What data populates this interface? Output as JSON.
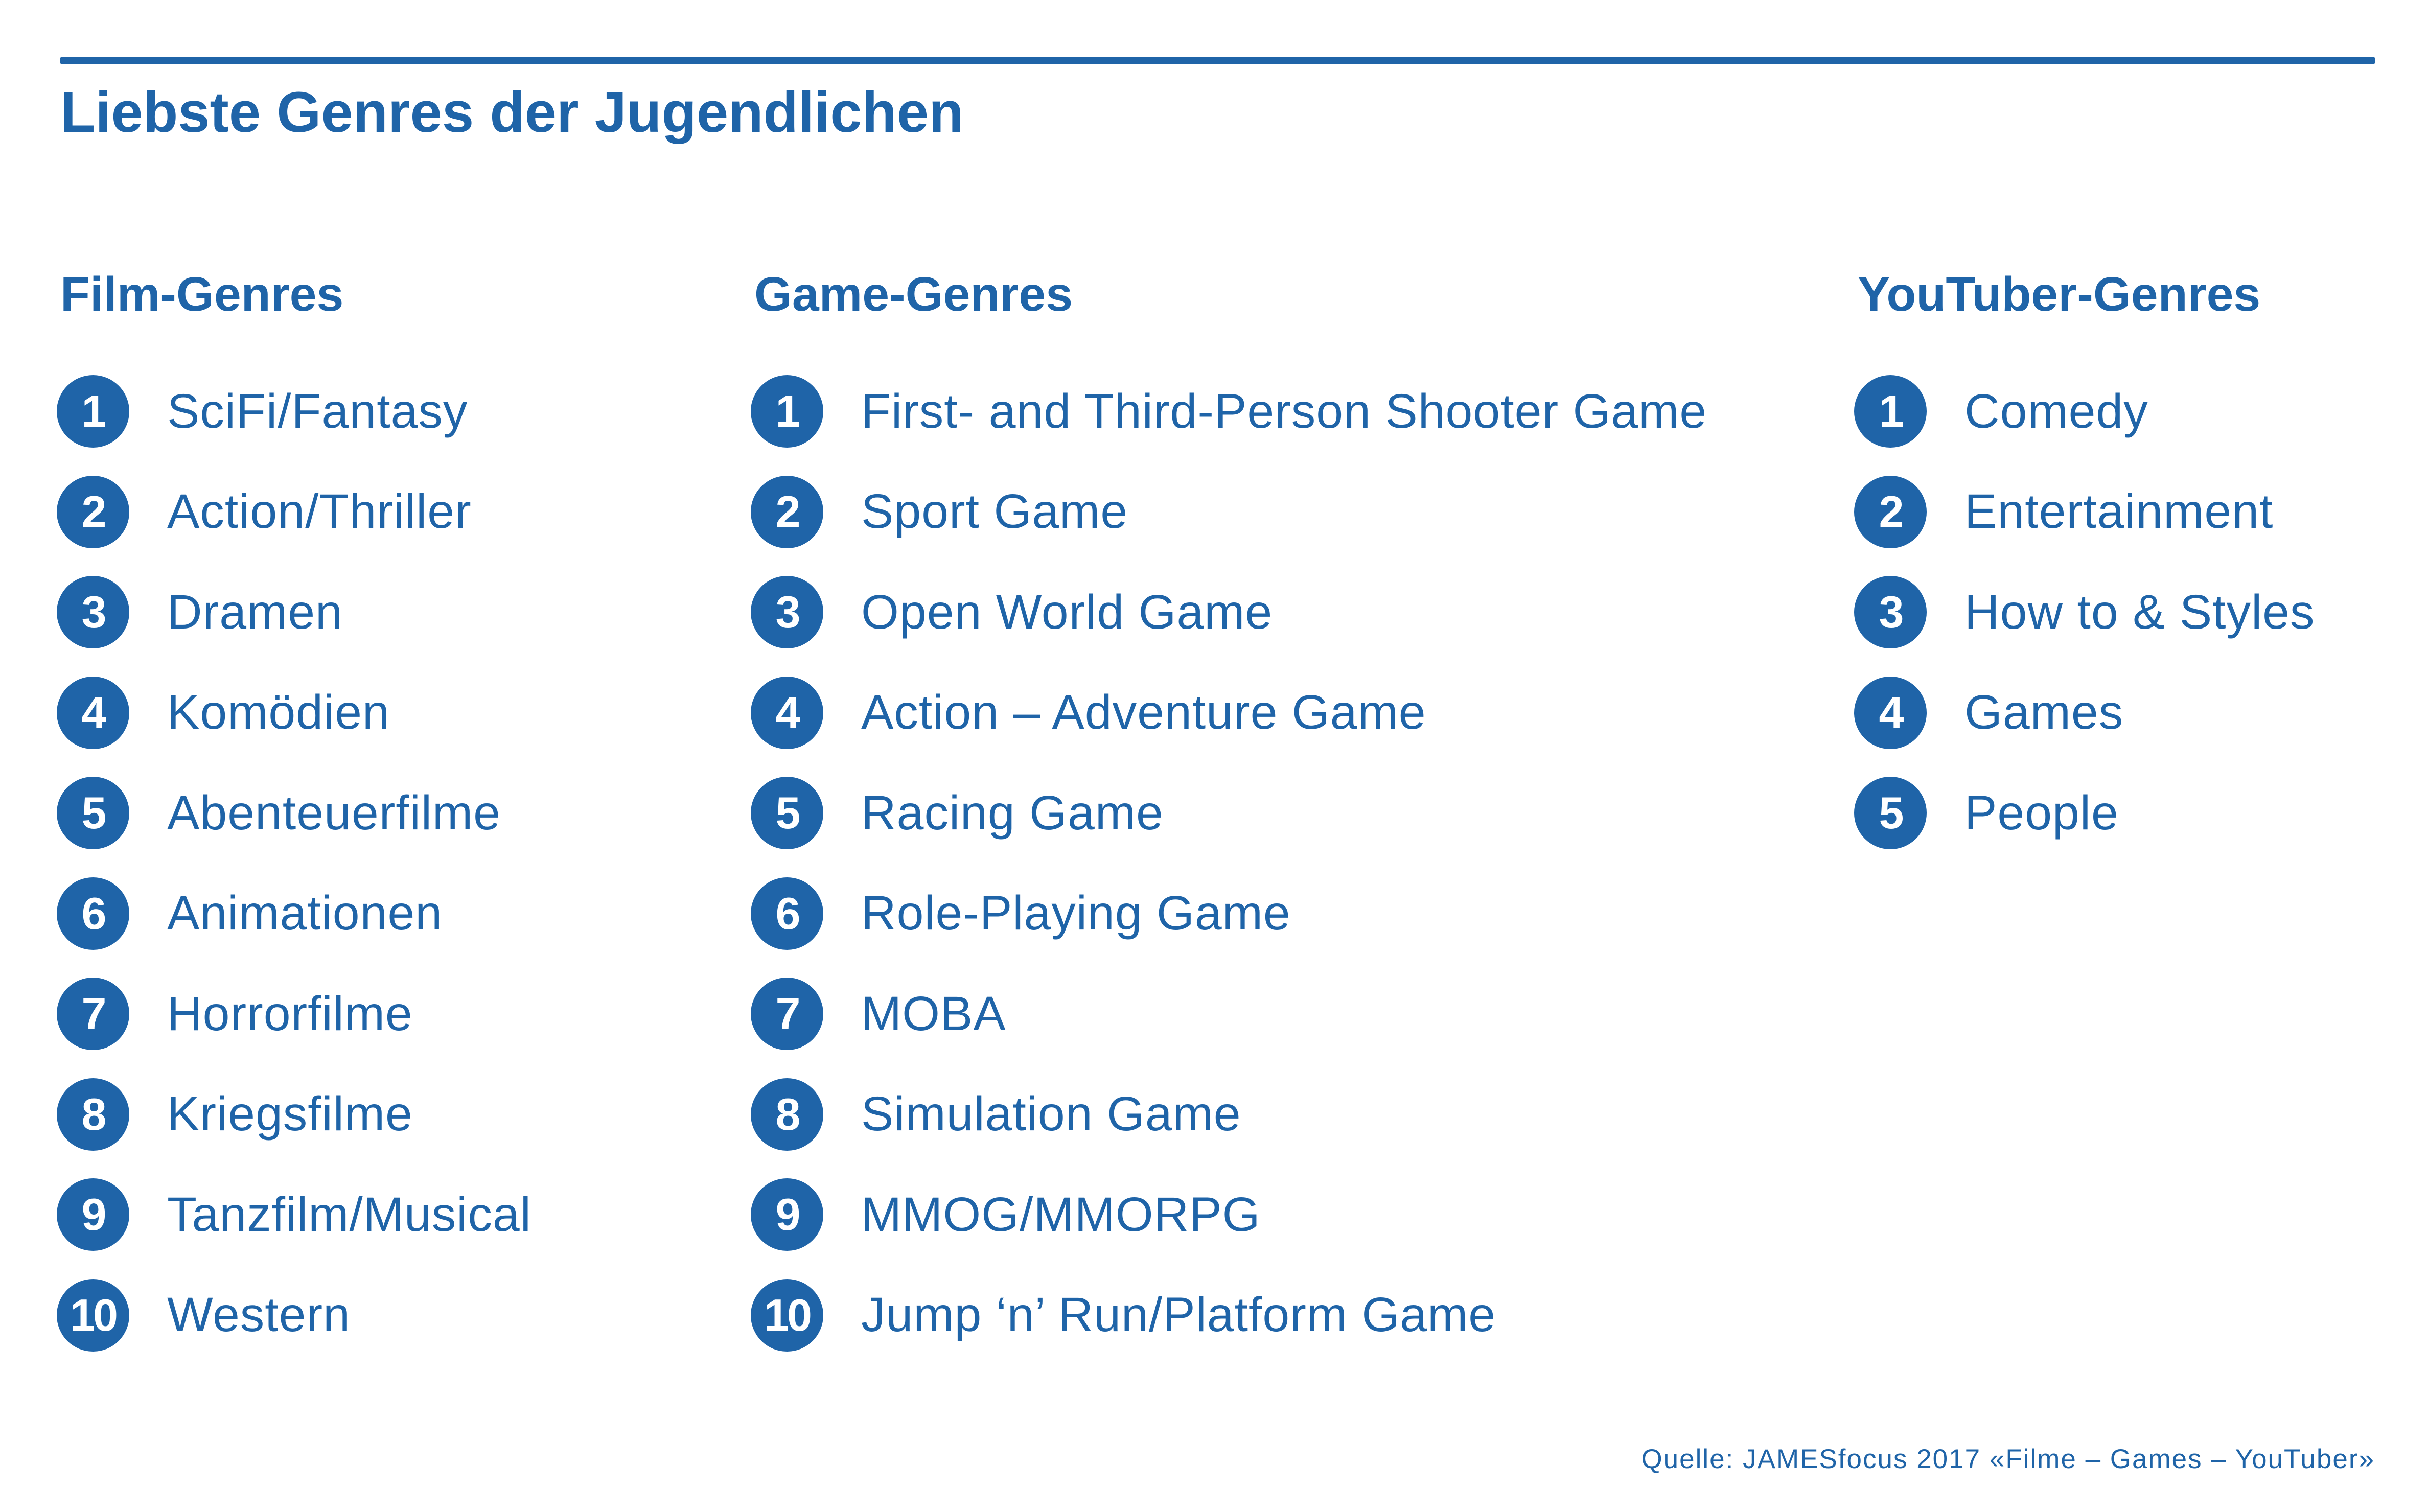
{
  "title": "Liebste Genres der Jugendlichen",
  "colors": {
    "accent": "#1f64a8",
    "background": "#ffffff",
    "badge_text": "#ffffff"
  },
  "columns": [
    {
      "heading": "Film-Genres",
      "items": [
        {
          "rank": "1",
          "label": "SciFi/Fantasy"
        },
        {
          "rank": "2",
          "label": "Action/Thriller"
        },
        {
          "rank": "3",
          "label": "Dramen"
        },
        {
          "rank": "4",
          "label": "Komödien"
        },
        {
          "rank": "5",
          "label": "Abenteuerfilme"
        },
        {
          "rank": "6",
          "label": "Animationen"
        },
        {
          "rank": "7",
          "label": "Horrorfilme"
        },
        {
          "rank": "8",
          "label": "Kriegsfilme"
        },
        {
          "rank": "9",
          "label": "Tanzfilm/Musical"
        },
        {
          "rank": "10",
          "label": "Western"
        }
      ]
    },
    {
      "heading": "Game-Genres",
      "items": [
        {
          "rank": "1",
          "label": "First- and Third-Person Shooter Game"
        },
        {
          "rank": "2",
          "label": "Sport Game"
        },
        {
          "rank": "3",
          "label": "Open World Game"
        },
        {
          "rank": "4",
          "label": "Action – Adventure Game"
        },
        {
          "rank": "5",
          "label": "Racing Game"
        },
        {
          "rank": "6",
          "label": "Role-Playing Game"
        },
        {
          "rank": "7",
          "label": "MOBA"
        },
        {
          "rank": "8",
          "label": "Simulation Game"
        },
        {
          "rank": "9",
          "label": "MMOG/MMORPG"
        },
        {
          "rank": "10",
          "label": "Jump ‘n’ Run/Platform Game"
        }
      ]
    },
    {
      "heading": "YouTuber-Genres",
      "items": [
        {
          "rank": "1",
          "label": "Comedy"
        },
        {
          "rank": "2",
          "label": "Entertainment"
        },
        {
          "rank": "3",
          "label": "How to & Styles"
        },
        {
          "rank": "4",
          "label": "Games"
        },
        {
          "rank": "5",
          "label": "People"
        }
      ]
    }
  ],
  "source": "Quelle: JAMESfocus 2017 «Filme – Games – YouTuber»"
}
